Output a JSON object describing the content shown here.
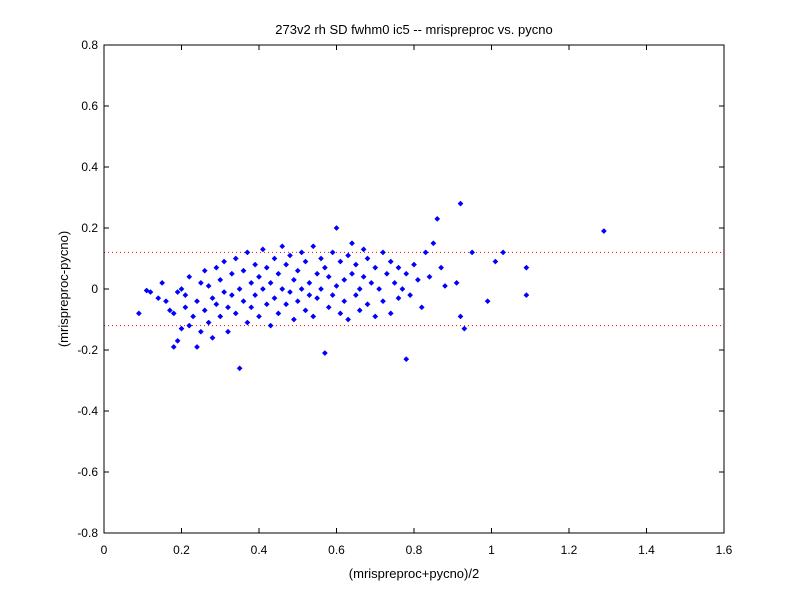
{
  "chart_data": {
    "type": "scatter",
    "title": "273v2 rh SD fwhm0 ic5 -- mrispreproc vs. pycno",
    "xlabel": "(mrispreproc+pycno)/2",
    "ylabel": "(mrispreproc-pycno)",
    "xlim": [
      0,
      1.6
    ],
    "ylim": [
      -0.8,
      0.8
    ],
    "xticks": [
      "0",
      "0.2",
      "0.4",
      "0.6",
      "0.8",
      "1",
      "1.2",
      "1.4",
      "1.6"
    ],
    "yticks": [
      "0.8",
      "0.6",
      "0.4",
      "0.2",
      "0",
      "-0.2",
      "-0.4",
      "-0.6",
      "-0.8"
    ],
    "reference_lines_y": [
      0.12,
      -0.12
    ],
    "marker_color": "#0000ff",
    "reference_line_color": "#ff0000",
    "grid": false,
    "box": true,
    "series": [
      {
        "points": [
          [
            0.09,
            -0.08
          ],
          [
            0.11,
            -0.005
          ],
          [
            0.12,
            -0.01
          ],
          [
            0.14,
            -0.03
          ],
          [
            0.15,
            0.02
          ],
          [
            0.16,
            -0.04
          ],
          [
            0.17,
            -0.07
          ],
          [
            0.18,
            -0.19
          ],
          [
            0.18,
            -0.08
          ],
          [
            0.19,
            -0.01
          ],
          [
            0.19,
            -0.17
          ],
          [
            0.2,
            -0.13
          ],
          [
            0.2,
            0.0
          ],
          [
            0.21,
            -0.02
          ],
          [
            0.21,
            -0.06
          ],
          [
            0.22,
            -0.12
          ],
          [
            0.22,
            0.04
          ],
          [
            0.23,
            -0.09
          ],
          [
            0.24,
            -0.04
          ],
          [
            0.24,
            -0.19
          ],
          [
            0.25,
            0.02
          ],
          [
            0.25,
            -0.14
          ],
          [
            0.26,
            0.06
          ],
          [
            0.26,
            -0.07
          ],
          [
            0.27,
            -0.11
          ],
          [
            0.27,
            0.01
          ],
          [
            0.28,
            -0.03
          ],
          [
            0.28,
            -0.16
          ],
          [
            0.29,
            0.07
          ],
          [
            0.29,
            -0.05
          ],
          [
            0.3,
            -0.09
          ],
          [
            0.3,
            0.03
          ],
          [
            0.31,
            -0.01
          ],
          [
            0.31,
            0.09
          ],
          [
            0.32,
            -0.06
          ],
          [
            0.32,
            -0.14
          ],
          [
            0.33,
            0.05
          ],
          [
            0.33,
            -0.02
          ],
          [
            0.34,
            0.1
          ],
          [
            0.34,
            -0.08
          ],
          [
            0.35,
            -0.26
          ],
          [
            0.35,
            0.0
          ],
          [
            0.36,
            0.06
          ],
          [
            0.36,
            -0.04
          ],
          [
            0.37,
            -0.11
          ],
          [
            0.37,
            0.12
          ],
          [
            0.38,
            0.02
          ],
          [
            0.38,
            -0.06
          ],
          [
            0.39,
            -0.02
          ],
          [
            0.39,
            0.08
          ],
          [
            0.4,
            -0.09
          ],
          [
            0.4,
            0.04
          ],
          [
            0.41,
            0.0
          ],
          [
            0.41,
            0.13
          ],
          [
            0.42,
            -0.05
          ],
          [
            0.42,
            0.07
          ],
          [
            0.43,
            -0.12
          ],
          [
            0.43,
            0.02
          ],
          [
            0.44,
            0.1
          ],
          [
            0.44,
            -0.03
          ],
          [
            0.45,
            0.05
          ],
          [
            0.45,
            -0.08
          ],
          [
            0.46,
            0.14
          ],
          [
            0.46,
            0.0
          ],
          [
            0.47,
            -0.05
          ],
          [
            0.47,
            0.08
          ],
          [
            0.48,
            -0.01
          ],
          [
            0.48,
            0.11
          ],
          [
            0.49,
            -0.1
          ],
          [
            0.49,
            0.03
          ],
          [
            0.5,
            0.06
          ],
          [
            0.5,
            -0.04
          ],
          [
            0.51,
            0.12
          ],
          [
            0.51,
            0.0
          ],
          [
            0.52,
            -0.07
          ],
          [
            0.52,
            0.09
          ],
          [
            0.53,
            0.02
          ],
          [
            0.53,
            -0.02
          ],
          [
            0.54,
            0.14
          ],
          [
            0.54,
            -0.09
          ],
          [
            0.55,
            0.05
          ],
          [
            0.55,
            -0.03
          ],
          [
            0.56,
            0.1
          ],
          [
            0.56,
            0.0
          ],
          [
            0.57,
            -0.21
          ],
          [
            0.57,
            0.07
          ],
          [
            0.58,
            -0.06
          ],
          [
            0.58,
            0.04
          ],
          [
            0.59,
            0.12
          ],
          [
            0.59,
            -0.02
          ],
          [
            0.6,
            0.2
          ],
          [
            0.6,
            0.01
          ],
          [
            0.61,
            -0.08
          ],
          [
            0.61,
            0.09
          ],
          [
            0.62,
            0.03
          ],
          [
            0.62,
            -0.04
          ],
          [
            0.63,
            0.11
          ],
          [
            0.63,
            -0.1
          ],
          [
            0.64,
            0.05
          ],
          [
            0.64,
            0.15
          ],
          [
            0.65,
            -0.02
          ],
          [
            0.65,
            0.08
          ],
          [
            0.66,
            0.0
          ],
          [
            0.66,
            -0.07
          ],
          [
            0.67,
            0.13
          ],
          [
            0.67,
            0.04
          ],
          [
            0.68,
            -0.05
          ],
          [
            0.68,
            0.1
          ],
          [
            0.69,
            0.02
          ],
          [
            0.7,
            -0.09
          ],
          [
            0.7,
            0.07
          ],
          [
            0.71,
            0.0
          ],
          [
            0.72,
            0.12
          ],
          [
            0.72,
            -0.04
          ],
          [
            0.73,
            0.05
          ],
          [
            0.74,
            -0.08
          ],
          [
            0.74,
            0.09
          ],
          [
            0.75,
            0.02
          ],
          [
            0.76,
            -0.03
          ],
          [
            0.76,
            0.07
          ],
          [
            0.77,
            0.0
          ],
          [
            0.78,
            -0.23
          ],
          [
            0.78,
            0.05
          ],
          [
            0.79,
            -0.02
          ],
          [
            0.8,
            0.08
          ],
          [
            0.81,
            0.03
          ],
          [
            0.82,
            -0.06
          ],
          [
            0.83,
            0.12
          ],
          [
            0.84,
            0.04
          ],
          [
            0.85,
            0.15
          ],
          [
            0.86,
            0.23
          ],
          [
            0.87,
            0.07
          ],
          [
            0.88,
            0.01
          ],
          [
            0.91,
            0.02
          ],
          [
            0.92,
            0.28
          ],
          [
            0.92,
            -0.09
          ],
          [
            0.93,
            -0.13
          ],
          [
            0.95,
            0.12
          ],
          [
            0.99,
            -0.04
          ],
          [
            1.01,
            0.09
          ],
          [
            1.03,
            0.12
          ],
          [
            1.09,
            0.07
          ],
          [
            1.09,
            -0.02
          ],
          [
            1.29,
            0.19
          ]
        ]
      }
    ]
  }
}
